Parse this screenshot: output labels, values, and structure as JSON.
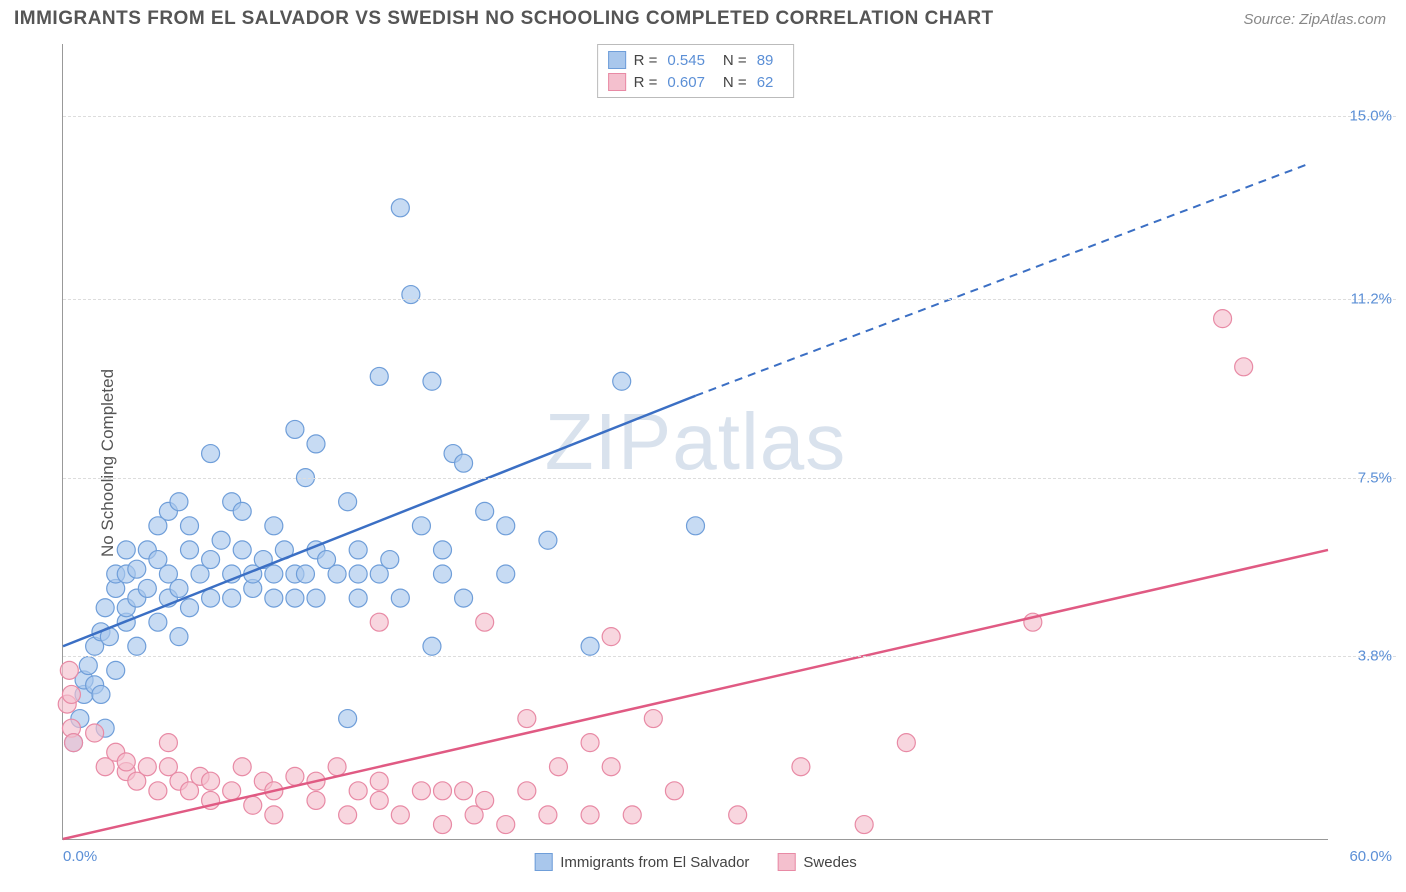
{
  "header": {
    "title": "IMMIGRANTS FROM EL SALVADOR VS SWEDISH NO SCHOOLING COMPLETED CORRELATION CHART",
    "source": "Source: ZipAtlas.com"
  },
  "chart": {
    "type": "scatter",
    "ylabel": "No Schooling Completed",
    "watermark": "ZIPatlas",
    "xlim": [
      0,
      60
    ],
    "ylim": [
      0,
      16.5
    ],
    "yticks": [
      {
        "v": 3.8,
        "label": "3.8%"
      },
      {
        "v": 7.5,
        "label": "7.5%"
      },
      {
        "v": 11.2,
        "label": "11.2%"
      },
      {
        "v": 15.0,
        "label": "15.0%"
      }
    ],
    "xtick_left": "0.0%",
    "xtick_right": "60.0%",
    "background_color": "#ffffff",
    "grid_color": "#dddddd",
    "axis_color": "#999999",
    "series": [
      {
        "name": "Immigrants from El Salvador",
        "color_fill": "#a9c7ec",
        "color_stroke": "#6f9ed9",
        "line_color": "#3b6fc4",
        "marker_radius": 9,
        "marker_opacity": 0.65,
        "R": "0.545",
        "N": "89",
        "trend": {
          "x1": 0,
          "y1": 4.0,
          "x2_solid": 30,
          "y2_solid": 9.2,
          "x2": 59,
          "y2": 14.0
        },
        "points": [
          [
            0.5,
            2.0
          ],
          [
            0.8,
            2.5
          ],
          [
            1,
            3.0
          ],
          [
            1,
            3.3
          ],
          [
            1.2,
            3.6
          ],
          [
            1.5,
            3.2
          ],
          [
            1.5,
            4.0
          ],
          [
            1.8,
            3.0
          ],
          [
            1.8,
            4.3
          ],
          [
            2,
            2.3
          ],
          [
            2,
            4.8
          ],
          [
            2.2,
            4.2
          ],
          [
            2.5,
            3.5
          ],
          [
            2.5,
            5.2
          ],
          [
            2.5,
            5.5
          ],
          [
            3,
            4.5
          ],
          [
            3,
            4.8
          ],
          [
            3,
            5.5
          ],
          [
            3,
            6.0
          ],
          [
            3.5,
            4.0
          ],
          [
            3.5,
            5.0
          ],
          [
            3.5,
            5.6
          ],
          [
            4,
            5.2
          ],
          [
            4,
            6.0
          ],
          [
            4.5,
            4.5
          ],
          [
            4.5,
            5.8
          ],
          [
            4.5,
            6.5
          ],
          [
            5,
            5.0
          ],
          [
            5,
            5.5
          ],
          [
            5,
            6.8
          ],
          [
            5.5,
            4.2
          ],
          [
            5.5,
            5.2
          ],
          [
            5.5,
            7.0
          ],
          [
            6,
            4.8
          ],
          [
            6,
            6.0
          ],
          [
            6,
            6.5
          ],
          [
            6.5,
            5.5
          ],
          [
            7,
            5.0
          ],
          [
            7,
            5.8
          ],
          [
            7,
            8.0
          ],
          [
            7.5,
            6.2
          ],
          [
            8,
            5.0
          ],
          [
            8,
            5.5
          ],
          [
            8,
            7.0
          ],
          [
            8.5,
            6.0
          ],
          [
            8.5,
            6.8
          ],
          [
            9,
            5.2
          ],
          [
            9,
            5.5
          ],
          [
            9.5,
            5.8
          ],
          [
            10,
            5.0
          ],
          [
            10,
            5.5
          ],
          [
            10,
            6.5
          ],
          [
            10.5,
            6.0
          ],
          [
            11,
            5.0
          ],
          [
            11,
            5.5
          ],
          [
            11,
            8.5
          ],
          [
            11.5,
            5.5
          ],
          [
            11.5,
            7.5
          ],
          [
            12,
            5.0
          ],
          [
            12,
            6.0
          ],
          [
            12,
            8.2
          ],
          [
            12.5,
            5.8
          ],
          [
            13,
            5.5
          ],
          [
            13.5,
            7.0
          ],
          [
            13.5,
            2.5
          ],
          [
            14,
            5.0
          ],
          [
            14,
            5.5
          ],
          [
            14,
            6.0
          ],
          [
            15,
            5.5
          ],
          [
            15,
            9.6
          ],
          [
            15.5,
            5.8
          ],
          [
            16,
            5.0
          ],
          [
            16,
            13.1
          ],
          [
            16.5,
            11.3
          ],
          [
            17,
            6.5
          ],
          [
            17.5,
            4.0
          ],
          [
            17.5,
            9.5
          ],
          [
            18,
            5.5
          ],
          [
            18,
            6.0
          ],
          [
            18.5,
            8.0
          ],
          [
            19,
            5.0
          ],
          [
            19,
            7.8
          ],
          [
            20,
            6.8
          ],
          [
            21,
            5.5
          ],
          [
            21,
            6.5
          ],
          [
            23,
            6.2
          ],
          [
            25,
            4.0
          ],
          [
            26.5,
            9.5
          ],
          [
            30,
            6.5
          ]
        ]
      },
      {
        "name": "Swedes",
        "color_fill": "#f4c0ce",
        "color_stroke": "#e88aa5",
        "line_color": "#e05a83",
        "marker_radius": 9,
        "marker_opacity": 0.65,
        "R": "0.607",
        "N": "62",
        "trend": {
          "x1": 0,
          "y1": 0.0,
          "x2_solid": 60,
          "y2_solid": 6.0,
          "x2": 60,
          "y2": 6.0
        },
        "points": [
          [
            0.2,
            2.8
          ],
          [
            0.3,
            3.5
          ],
          [
            0.4,
            2.3
          ],
          [
            0.4,
            3.0
          ],
          [
            0.5,
            2.0
          ],
          [
            1.5,
            2.2
          ],
          [
            2,
            1.5
          ],
          [
            2.5,
            1.8
          ],
          [
            3,
            1.4
          ],
          [
            3,
            1.6
          ],
          [
            3.5,
            1.2
          ],
          [
            4,
            1.5
          ],
          [
            4.5,
            1.0
          ],
          [
            5,
            1.5
          ],
          [
            5,
            2.0
          ],
          [
            5.5,
            1.2
          ],
          [
            6,
            1.0
          ],
          [
            6.5,
            1.3
          ],
          [
            7,
            0.8
          ],
          [
            7,
            1.2
          ],
          [
            8,
            1.0
          ],
          [
            8.5,
            1.5
          ],
          [
            9,
            0.7
          ],
          [
            9.5,
            1.2
          ],
          [
            10,
            0.5
          ],
          [
            10,
            1.0
          ],
          [
            11,
            1.3
          ],
          [
            12,
            0.8
          ],
          [
            12,
            1.2
          ],
          [
            13,
            1.5
          ],
          [
            13.5,
            0.5
          ],
          [
            14,
            1.0
          ],
          [
            15,
            0.8
          ],
          [
            15,
            1.2
          ],
          [
            15,
            4.5
          ],
          [
            16,
            0.5
          ],
          [
            17,
            1.0
          ],
          [
            18,
            0.3
          ],
          [
            18,
            1.0
          ],
          [
            19,
            1.0
          ],
          [
            19.5,
            0.5
          ],
          [
            20,
            0.8
          ],
          [
            20,
            4.5
          ],
          [
            21,
            0.3
          ],
          [
            22,
            1.0
          ],
          [
            22,
            2.5
          ],
          [
            23,
            0.5
          ],
          [
            23.5,
            1.5
          ],
          [
            25,
            0.5
          ],
          [
            25,
            2.0
          ],
          [
            26,
            1.5
          ],
          [
            26,
            4.2
          ],
          [
            27,
            0.5
          ],
          [
            28,
            2.5
          ],
          [
            29,
            1.0
          ],
          [
            32,
            0.5
          ],
          [
            35,
            1.5
          ],
          [
            38,
            0.3
          ],
          [
            40,
            2.0
          ],
          [
            46,
            4.5
          ],
          [
            55,
            10.8
          ],
          [
            56,
            9.8
          ]
        ]
      }
    ]
  }
}
